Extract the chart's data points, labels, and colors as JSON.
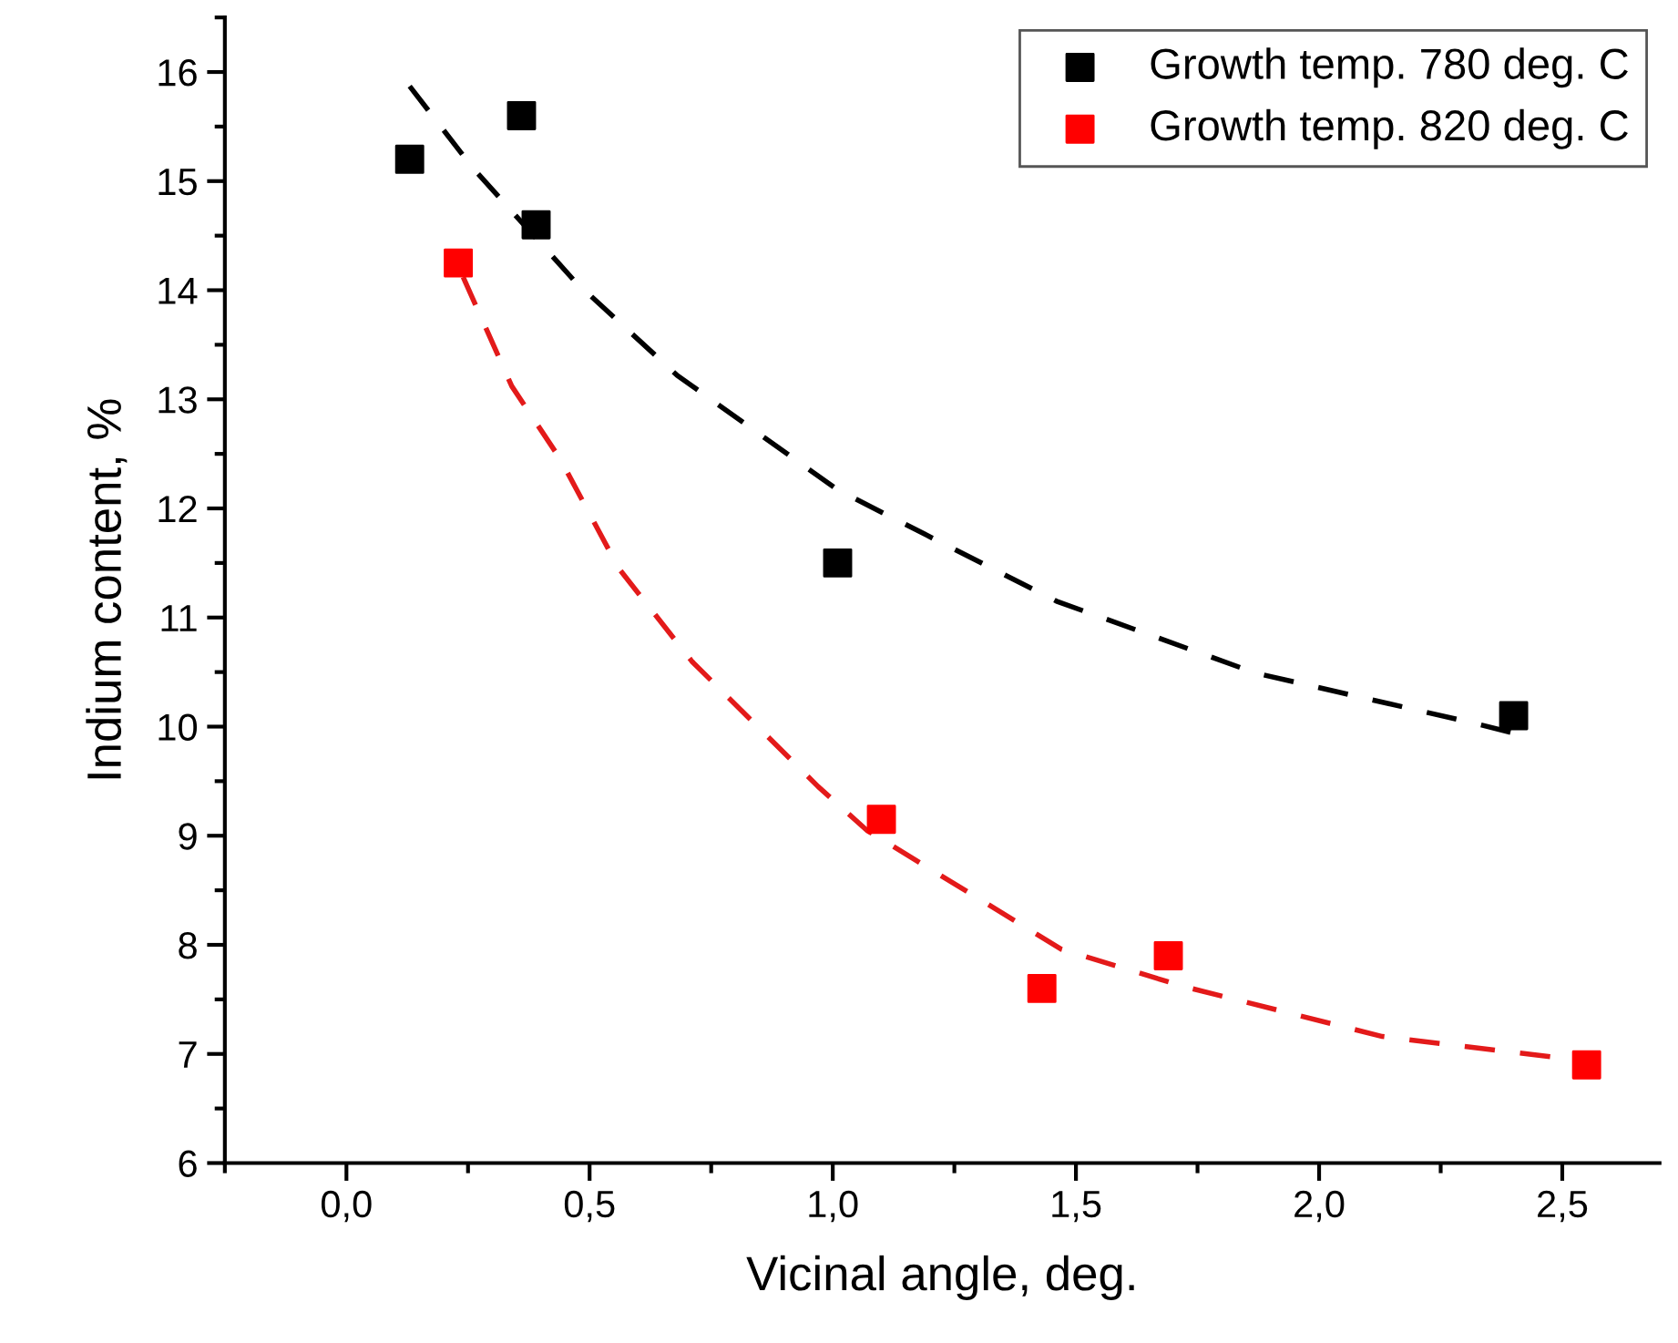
{
  "chart_data": {
    "type": "scatter",
    "xlabel": "Vicinal angle, deg.",
    "ylabel": "Indium content, %",
    "xlim": [
      -0.25,
      2.7
    ],
    "xticks": [
      {
        "value": 0,
        "label": "0,0"
      },
      {
        "value": 0.5,
        "label": "0,5"
      },
      {
        "value": 1.0,
        "label": "1,0"
      },
      {
        "value": 1.5,
        "label": "1,5"
      },
      {
        "value": 2.0,
        "label": "2,0"
      },
      {
        "value": 2.5,
        "label": "2,5"
      }
    ],
    "ylim": [
      6,
      16.5
    ],
    "yticks": [
      6,
      7,
      8,
      9,
      10,
      11,
      12,
      13,
      14,
      15,
      16
    ],
    "legend": "top right",
    "marker": "square",
    "grid": false,
    "series": [
      {
        "name": "Growth temp. 780 deg. C",
        "color": "#000000",
        "x": [
          0.13,
          0.36,
          0.39,
          1.01,
          2.4
        ],
        "values": [
          15.2,
          15.6,
          14.6,
          11.5,
          10.1
        ]
      },
      {
        "name": "Growth temp. 820 deg. C",
        "color": "#ff0000",
        "x": [
          0.23,
          1.1,
          1.43,
          1.69,
          2.55
        ],
        "values": [
          14.25,
          9.15,
          7.6,
          7.9,
          6.9
        ]
      },
      {
        "type": "line",
        "line_style": "dashed",
        "marker": "none",
        "color": "#000000",
        "x": [
          0.13,
          0.26,
          0.47,
          0.68,
          1.01,
          1.46,
          1.87,
          2.32,
          2.4
        ],
        "values": [
          15.87,
          15.12,
          14.08,
          13.22,
          12.17,
          11.15,
          10.49,
          10.03,
          9.94
        ]
      },
      {
        "type": "line",
        "line_style": "dashed",
        "marker": "none",
        "color": "#e31a1a",
        "x": [
          0.24,
          0.34,
          0.44,
          0.56,
          0.71,
          0.97,
          1.07,
          1.47,
          1.72,
          2.13,
          2.52
        ],
        "values": [
          14.12,
          13.12,
          12.45,
          11.45,
          10.6,
          9.45,
          9.05,
          7.96,
          7.62,
          7.16,
          6.95
        ]
      }
    ]
  }
}
